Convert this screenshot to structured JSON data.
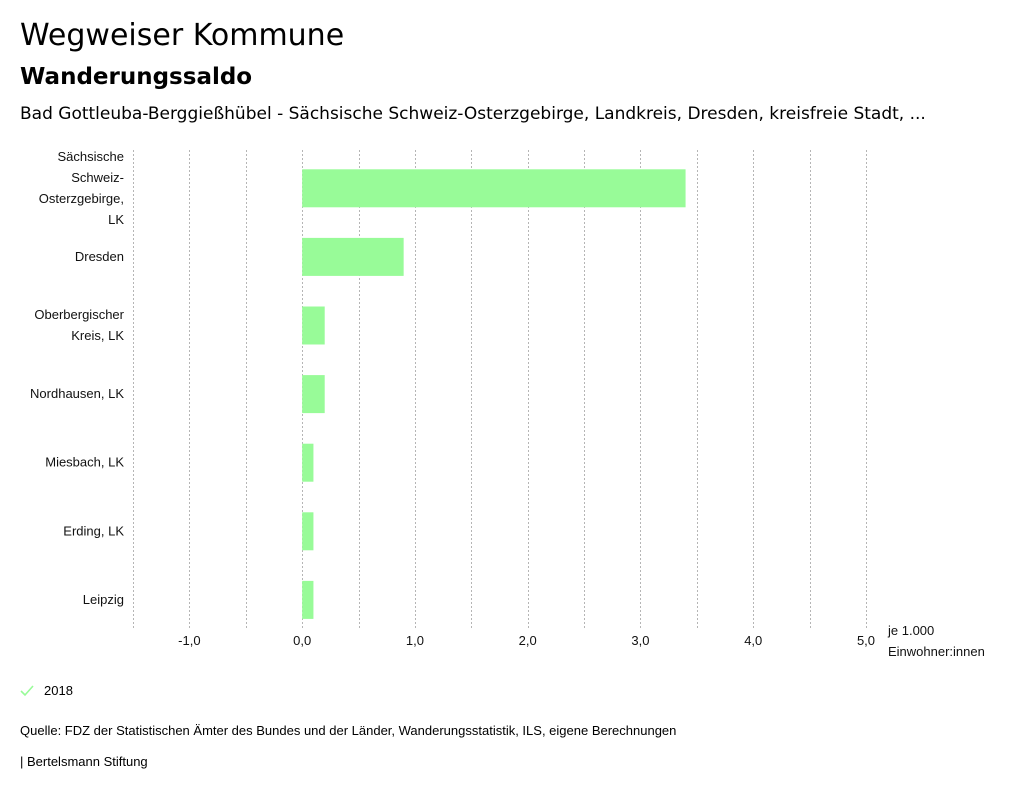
{
  "header": {
    "title": "Wegweiser Kommune",
    "subtitle": "Wanderungssaldo",
    "region": "Bad Gottleuba-Berggießhübel - Sächsische Schweiz-Osterzgebirge, Landkreis, Dresden, kreisfreie Stadt, ..."
  },
  "chart_data": {
    "type": "bar",
    "orientation": "horizontal",
    "categories": [
      [
        "Sächsische",
        "Schweiz-",
        "Osterzgebirge,",
        "LK"
      ],
      [
        "Dresden"
      ],
      [
        "Oberbergischer",
        "Kreis, LK"
      ],
      [
        "Nordhausen, LK"
      ],
      [
        "Miesbach, LK"
      ],
      [
        "Erding, LK"
      ],
      [
        "Leipzig"
      ]
    ],
    "series": [
      {
        "name": "2018",
        "color": "#98fb98",
        "values": [
          3.4,
          0.9,
          0.2,
          0.2,
          0.1,
          0.1,
          0.1
        ]
      }
    ],
    "xlim": [
      -1.5,
      5.0
    ],
    "major_ticks": [
      -1.0,
      0.0,
      1.0,
      2.0,
      3.0,
      4.0,
      5.0
    ],
    "tick_labels": [
      "-1,0",
      "0,0",
      "1,0",
      "2,0",
      "3,0",
      "4,0",
      "5,0"
    ],
    "grid_step": 0.5,
    "unit_label": [
      "je 1.000",
      "Einwohner:innen"
    ],
    "legend_position": "bottom-left"
  },
  "legend": {
    "label": "2018",
    "color": "#98fb98"
  },
  "footer": {
    "source": "Quelle: FDZ der Statistischen Ämter des Bundes und der Länder, Wanderungsstatistik, ILS, eigene Berechnungen",
    "brand": "| Bertelsmann Stiftung"
  }
}
